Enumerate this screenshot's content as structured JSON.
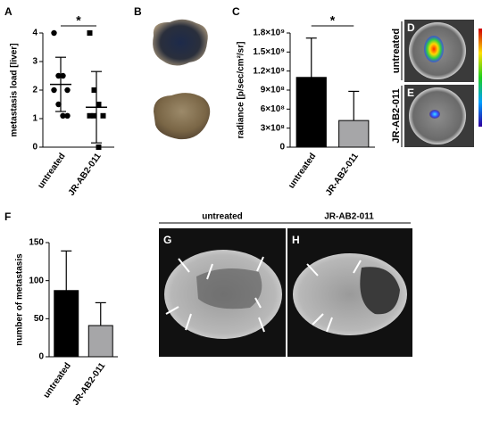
{
  "chart_data": [
    {
      "panel": "A",
      "type": "dotplot",
      "ylabel": "metastasis load [liver]",
      "categories": [
        "untreated",
        "JR-AB2-011"
      ],
      "points": [
        [
          4,
          2.5,
          2.5,
          2,
          2,
          1.5,
          1.1,
          1.1
        ],
        [
          4,
          2,
          1.5,
          1.1,
          1.1,
          1.1,
          0
        ]
      ],
      "markers": [
        "circle",
        "square"
      ],
      "means": [
        2.2,
        1.4
      ],
      "sd": [
        0.95,
        1.25
      ],
      "ylim": [
        0,
        4
      ],
      "yticks": [
        0,
        1,
        2,
        3,
        4
      ],
      "color": "#000000",
      "annotation": "*"
    },
    {
      "panel": "C",
      "type": "bar",
      "ylabel": "radiance [p/sec/cm²/sr]",
      "categories": [
        "untreated",
        "JR-AB2-011"
      ],
      "values": [
        1100000000,
        420000000
      ],
      "errors": [
        620000000,
        460000000
      ],
      "colors": [
        "#000000",
        "#a6a6a8"
      ],
      "ylim": [
        0,
        1800000000
      ],
      "yticks": [
        0,
        {
          "value": 300000000,
          "label": "3×10⁸"
        },
        {
          "value": 600000000,
          "label": "6×10⁸"
        },
        {
          "value": 900000000,
          "label": "9×10⁸"
        },
        {
          "value": 1200000000,
          "label": "1.2×10⁹"
        },
        {
          "value": 1500000000,
          "label": "1.5×10⁹"
        },
        {
          "value": 1800000000,
          "label": "1.8×10⁹"
        }
      ],
      "annotation": "*"
    },
    {
      "panel": "F",
      "type": "bar",
      "ylabel": "number of metastasis",
      "categories": [
        "untreated",
        "JR-AB2-011"
      ],
      "values": [
        87,
        41
      ],
      "errors": [
        52,
        30
      ],
      "colors": [
        "#000000",
        "#a6a6a8"
      ],
      "ylim": [
        0,
        150
      ],
      "yticks": [
        0,
        50,
        100,
        150
      ]
    }
  ],
  "image_panels": [
    {
      "panel": "B"
    },
    {
      "panel": "D",
      "label": "untreated"
    },
    {
      "panel": "E",
      "label": "JR-AB2-011"
    },
    {
      "panel": "G",
      "label": "untreated"
    },
    {
      "panel": "H",
      "label": "JR-AB2-011"
    }
  ]
}
